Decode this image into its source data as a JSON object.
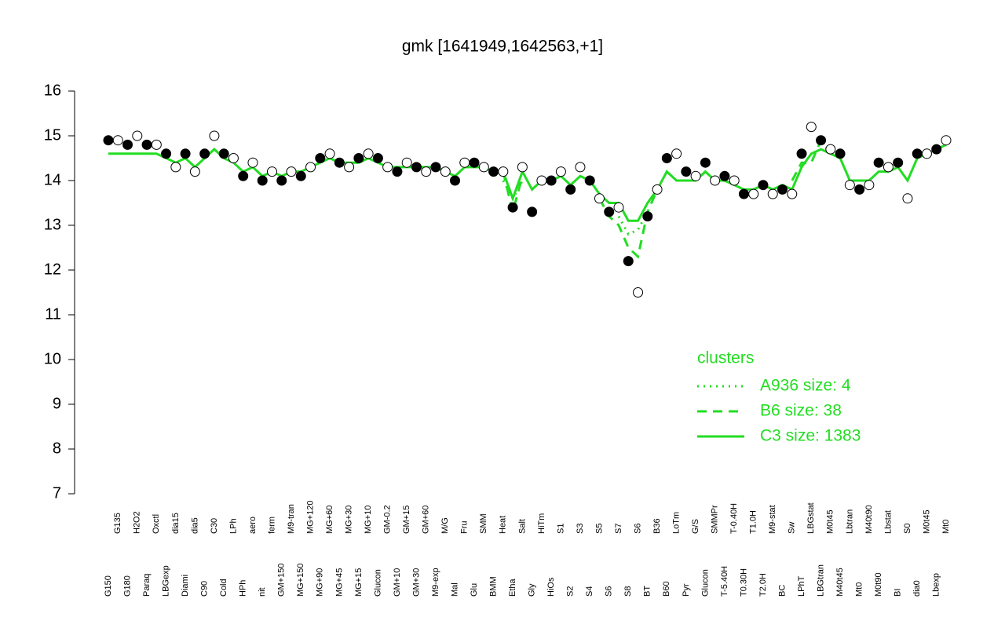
{
  "chart_data": {
    "type": "line",
    "title": "gmk [1641949,1642563,+1]",
    "categories": [
      "G150",
      "G135",
      "G180",
      "H2O2",
      "Paraq",
      "Oxctl",
      "LBGexp",
      "dia15",
      "Diami",
      "dia5",
      "C90",
      "C30",
      "Cold",
      "LPh",
      "HPh",
      "aero",
      "nit",
      "ferm",
      "GM+150",
      "M9-tran",
      "MG+150",
      "MG+120",
      "MG+90",
      "MG+60",
      "MG+45",
      "MG+30",
      "MG+15",
      "MG+10",
      "Glucon",
      "GM-0.2",
      "GM+10",
      "GM+15",
      "GM+30",
      "GM+60",
      "M9-exp",
      "M/G",
      "Mal",
      "Fru",
      "Glu",
      "SMM",
      "BMM",
      "Heat",
      "Etha",
      "Salt",
      "Gly",
      "HiTm",
      "HiOs",
      "S1",
      "S2",
      "S3",
      "S4",
      "S5",
      "S6",
      "S7",
      "S8",
      "S6",
      "BT",
      "B36",
      "B60",
      "LoTm",
      "Pyr",
      "G/S",
      "Glucon",
      "SMMPr",
      "T-5.40H",
      "T-0.40H",
      "T0.30H",
      "T1.0H",
      "T2.0H",
      "M9-stat",
      "BC",
      "Sw",
      "LPhT",
      "LBGstat",
      "LBGtran",
      "M0t45",
      "M40t45",
      "Lbtran",
      "Mt0",
      "M40t90",
      "M0t90",
      "Lbstat",
      "BI",
      "S0",
      "dia0",
      "M0t45",
      "Lbexp",
      "Mt0"
    ],
    "points": {
      "marker_fill": [
        "#000000",
        "#ffffff"
      ],
      "values": [
        14.9,
        14.9,
        14.8,
        15.0,
        14.8,
        14.8,
        14.6,
        14.3,
        14.6,
        14.2,
        14.6,
        15.0,
        14.6,
        14.5,
        14.1,
        14.4,
        14.0,
        14.2,
        14.0,
        14.2,
        14.1,
        14.3,
        14.5,
        14.6,
        14.4,
        14.3,
        14.5,
        14.6,
        14.5,
        14.3,
        14.2,
        14.4,
        14.3,
        14.2,
        14.3,
        14.2,
        14.0,
        14.4,
        14.4,
        14.3,
        14.2,
        14.2,
        13.4,
        14.3,
        13.3,
        14.0,
        14.0,
        14.2,
        13.8,
        14.3,
        14.0,
        13.6,
        13.3,
        13.4,
        12.2,
        11.5,
        13.2,
        13.8,
        14.5,
        14.6,
        14.2,
        14.1,
        14.4,
        14.0,
        14.1,
        14.0,
        13.7,
        13.7,
        13.9,
        13.7,
        13.8,
        13.7,
        14.6,
        15.2,
        14.9,
        14.7,
        14.6,
        13.9,
        13.8,
        13.9,
        14.4,
        14.3,
        14.4,
        13.6,
        14.6,
        14.6,
        14.7,
        14.9
      ]
    },
    "legend_title": "clusters",
    "series": [
      {
        "name": "A936 size: 4",
        "color": "#22dd22",
        "dash": "dotted",
        "values": [
          null,
          null,
          null,
          null,
          null,
          null,
          null,
          null,
          null,
          null,
          null,
          null,
          null,
          null,
          null,
          null,
          null,
          null,
          null,
          null,
          null,
          null,
          null,
          null,
          null,
          null,
          null,
          null,
          null,
          null,
          null,
          null,
          null,
          null,
          null,
          null,
          null,
          null,
          null,
          null,
          null,
          14.0,
          13.6,
          14.0,
          null,
          null,
          null,
          null,
          null,
          null,
          null,
          null,
          null,
          13.2,
          12.8,
          12.9,
          13.3,
          null,
          null,
          null,
          null,
          null,
          null,
          null,
          null,
          null,
          null,
          null,
          null,
          null,
          null,
          null,
          null,
          null,
          null,
          null,
          null,
          null,
          null,
          null,
          null,
          null,
          null,
          null,
          null,
          null,
          null,
          null
        ]
      },
      {
        "name": "B6 size: 38",
        "color": "#22dd22",
        "dash": "dashed",
        "values": [
          null,
          null,
          null,
          null,
          null,
          null,
          null,
          null,
          null,
          null,
          null,
          null,
          null,
          null,
          null,
          null,
          null,
          null,
          null,
          null,
          null,
          null,
          null,
          null,
          null,
          null,
          null,
          null,
          null,
          null,
          null,
          null,
          null,
          null,
          null,
          null,
          null,
          null,
          null,
          null,
          null,
          14.2,
          13.3,
          14.1,
          null,
          null,
          null,
          null,
          null,
          null,
          null,
          13.6,
          13.2,
          13.0,
          12.5,
          12.3,
          13.3,
          13.8,
          null,
          null,
          null,
          null,
          null,
          null,
          null,
          null,
          null,
          null,
          null,
          null,
          null,
          14.0,
          14.4,
          14.4,
          14.9,
          14.6,
          null,
          null,
          null,
          null,
          null,
          null,
          null,
          null,
          null,
          null,
          null,
          null
        ]
      },
      {
        "name": "C3 size: 1383",
        "color": "#22dd22",
        "dash": "solid",
        "values": [
          14.6,
          14.6,
          14.6,
          14.6,
          14.6,
          14.6,
          14.5,
          14.4,
          14.5,
          14.3,
          14.5,
          14.7,
          14.5,
          14.4,
          14.2,
          14.3,
          14.1,
          14.2,
          14.1,
          14.2,
          14.2,
          14.3,
          14.4,
          14.5,
          14.4,
          14.4,
          14.4,
          14.5,
          14.4,
          14.3,
          14.3,
          14.3,
          14.3,
          14.3,
          14.3,
          14.2,
          14.1,
          14.3,
          14.3,
          14.3,
          14.2,
          14.2,
          13.6,
          14.2,
          13.8,
          14.0,
          14.0,
          14.1,
          13.9,
          14.1,
          14.0,
          13.7,
          13.5,
          13.5,
          13.1,
          13.1,
          13.5,
          13.8,
          14.2,
          14.0,
          14.0,
          14.0,
          14.2,
          14.0,
          14.0,
          13.9,
          13.8,
          13.8,
          13.9,
          13.8,
          13.9,
          13.8,
          14.3,
          14.6,
          14.7,
          14.6,
          14.5,
          14.0,
          14.0,
          14.0,
          14.2,
          14.2,
          14.3,
          14.0,
          14.5,
          14.6,
          14.7,
          14.8
        ]
      }
    ],
    "ylim": [
      7,
      16
    ],
    "yticks": [
      7,
      8,
      9,
      10,
      11,
      12,
      13,
      14,
      15,
      16
    ]
  }
}
